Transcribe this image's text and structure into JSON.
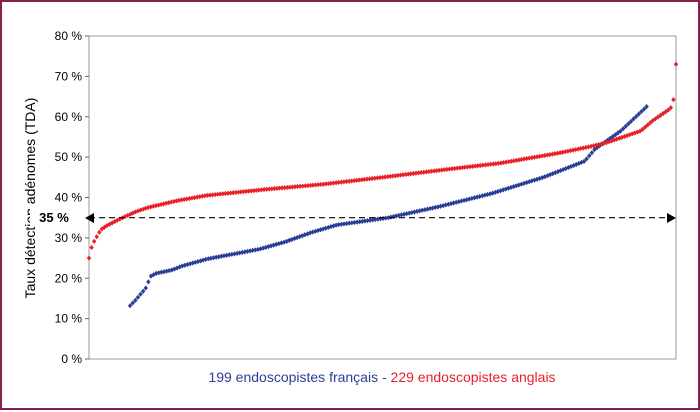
{
  "chart_data": {
    "type": "scatter",
    "ylabel": "Taux détection adénomes (TDA)",
    "y_ticks": [
      "0 %",
      "10 %",
      "20 %",
      "30 %",
      "40 %",
      "50 %",
      "60 %",
      "70 %",
      "80 %"
    ],
    "ylim": [
      0,
      80
    ],
    "grid": false,
    "reference_line": {
      "value": 35,
      "label": "35 %",
      "style": "dashed, double-arrowed"
    },
    "caption": {
      "blue": "199 endoscopistes français",
      "separator": " - ",
      "red": "229 endoscopistes anglais"
    },
    "colors": {
      "blue": "#2a3e96",
      "red": "#e8202a"
    },
    "series": [
      {
        "name": "199 endoscopistes français",
        "color": "#2a3e96",
        "marker": "diamond",
        "x_range": [
          7,
          95
        ],
        "profile_x_pct": [
          0,
          1,
          2,
          3,
          4,
          5,
          8,
          10,
          15,
          20,
          25,
          30,
          35,
          40,
          50,
          60,
          70,
          80,
          88,
          90,
          95,
          100
        ],
        "profile_y_pct": [
          13.2,
          14.5,
          16,
          17.5,
          20.5,
          21.2,
          22,
          23,
          24.8,
          26,
          27.2,
          29,
          31.3,
          33.2,
          35,
          37.8,
          41,
          45,
          49,
          52,
          56.5,
          62.5
        ]
      },
      {
        "name": "229 endoscopistes anglais",
        "color": "#e8202a",
        "marker": "diamond",
        "x_range": [
          0,
          100
        ],
        "profile_x_pct": [
          0,
          0.5,
          1,
          2,
          3,
          5,
          8,
          10,
          15,
          20,
          30,
          40,
          50,
          60,
          70,
          80,
          85,
          88,
          90,
          92,
          94,
          96,
          98,
          99,
          99.5,
          100
        ],
        "profile_y_pct": [
          25,
          28,
          29.5,
          32,
          33,
          34.5,
          36.5,
          37.5,
          39.2,
          40.5,
          42,
          43.3,
          45,
          46.8,
          48.5,
          51,
          52.5,
          53.5,
          54.5,
          55.5,
          56.5,
          59,
          61,
          62,
          63,
          73
        ]
      }
    ]
  }
}
